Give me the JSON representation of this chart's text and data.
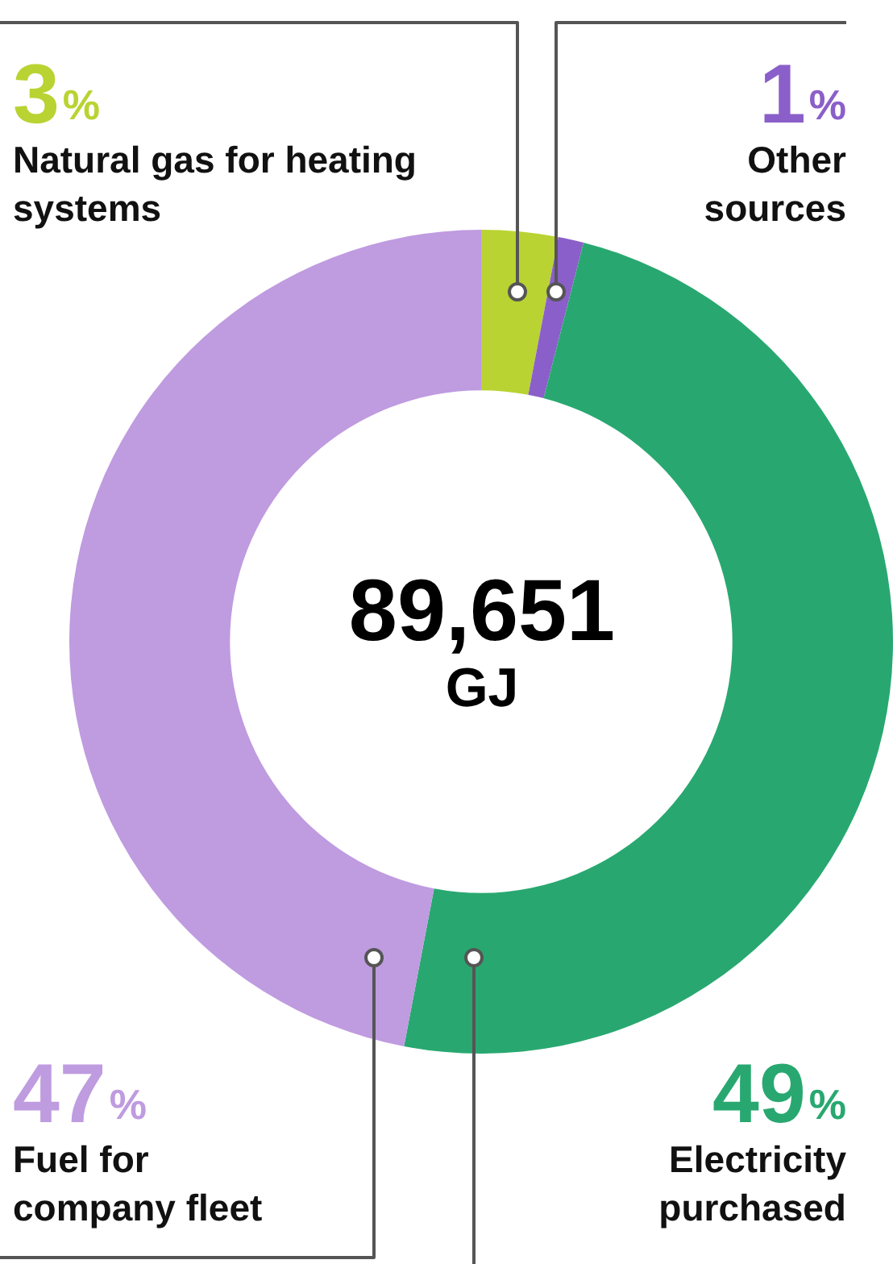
{
  "chart_data": {
    "type": "donut",
    "categories": [
      "Natural gas for heating systems",
      "Other sources",
      "Electricity purchased",
      "Fuel for company fleet"
    ],
    "values": [
      3,
      1,
      49,
      47
    ],
    "colors": [
      "#b9d332",
      "#8b5fc9",
      "#28a870",
      "#bf9be0"
    ],
    "value_labels": [
      "3%",
      "1%",
      "49%",
      "47%"
    ],
    "legend": false,
    "annotations": [
      "89,651",
      "GJ"
    ]
  }
}
